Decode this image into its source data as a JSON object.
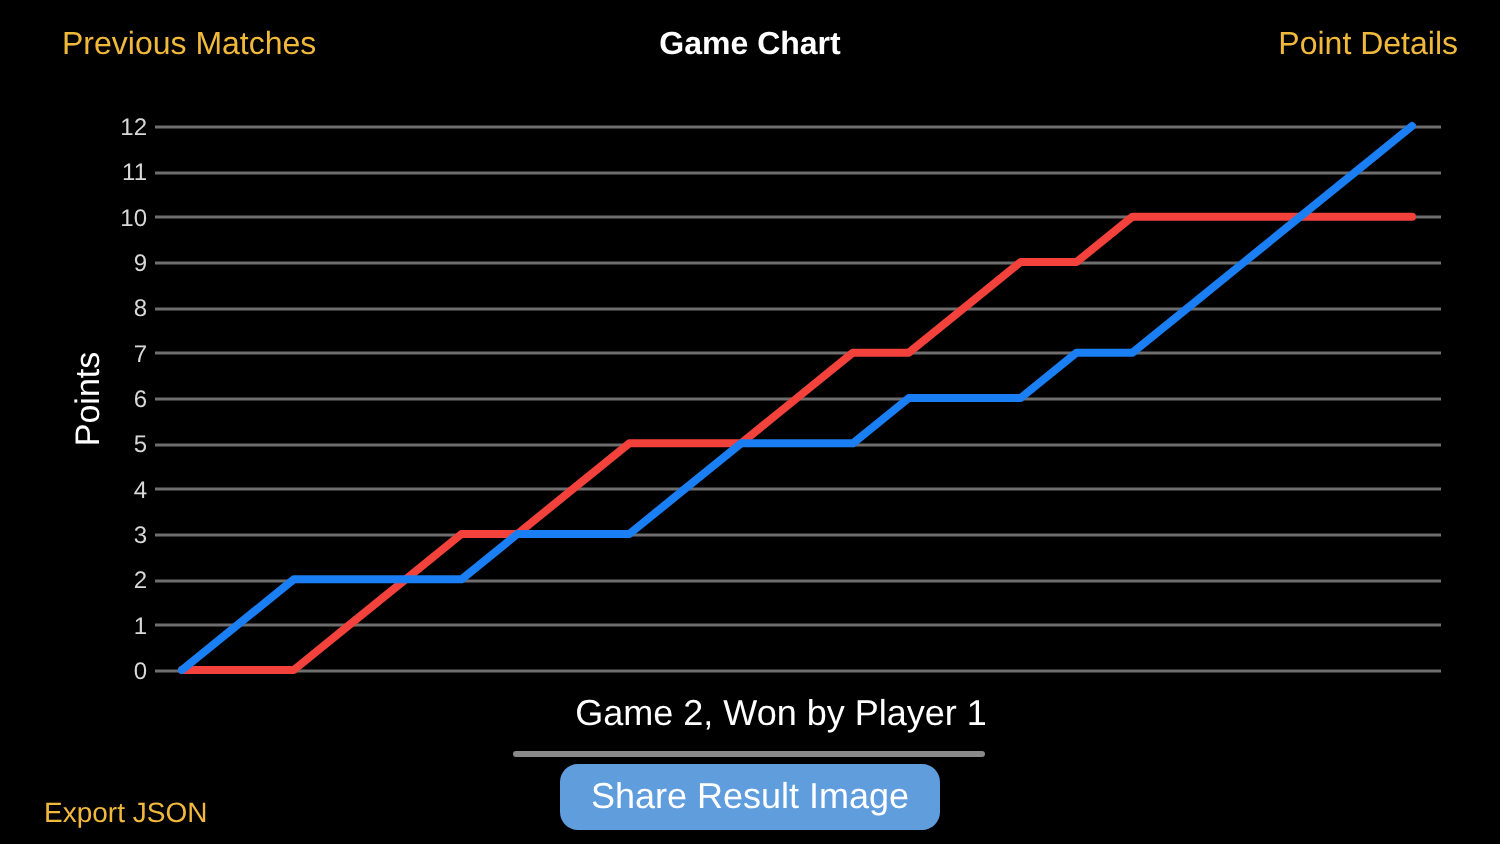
{
  "chart_data": {
    "type": "line",
    "title": "Game Chart",
    "xlabel": "Game 2, Won by Player 1",
    "ylabel": "Points",
    "categories": [
      null,
      null,
      null,
      null,
      null,
      null,
      null,
      null,
      null,
      null,
      null,
      null,
      null,
      null,
      null,
      null,
      null,
      null,
      null,
      null,
      null,
      null,
      null
    ],
    "series": [
      {
        "color": "#f2423b",
        "values": [
          0,
          0,
          0,
          1,
          2,
          3,
          3,
          4,
          5,
          5,
          5,
          6,
          7,
          7,
          8,
          9,
          9,
          10,
          10,
          10,
          10,
          10,
          10
        ]
      },
      {
        "color": "#1a7ff5",
        "values": [
          0,
          1,
          2,
          2,
          2,
          2,
          3,
          3,
          3,
          4,
          5,
          5,
          5,
          6,
          6,
          6,
          7,
          7,
          8,
          9,
          10,
          11,
          12
        ]
      }
    ],
    "ylim": [
      0,
      12
    ],
    "yticks": [
      0,
      1,
      2,
      3,
      4,
      5,
      6,
      7,
      8,
      9,
      10,
      11,
      12
    ],
    "grid": "y",
    "legend": false,
    "tick_labels": "y",
    "annotations": [
      "Previous Matches",
      "Point Details",
      "Share Result Image",
      "Export JSON"
    ]
  }
}
